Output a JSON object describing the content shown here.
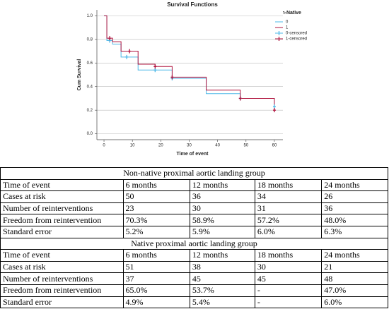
{
  "chart_data": {
    "type": "step",
    "title": "Survival Functions",
    "x_label": "Time of event",
    "y_label": "Cum Survival",
    "legend_title": "Non-Native",
    "legend": "top-right",
    "grid": true,
    "xlim": [
      -2.5,
      63
    ],
    "ylim": [
      -0.05,
      1.05
    ],
    "xticks": [
      0,
      10,
      20,
      30,
      40,
      50,
      60
    ],
    "yticks": [
      {
        "value": 0,
        "label": "0.0"
      },
      {
        "value": 0.2,
        "label": "0.2"
      },
      {
        "value": 0.4,
        "label": "0.4"
      },
      {
        "value": 0.6,
        "label": "0.6"
      },
      {
        "value": 0.8,
        "label": "0.8"
      },
      {
        "value": 1,
        "label": "1.0"
      }
    ],
    "series": [
      {
        "name": "0",
        "color": "#4db8e8",
        "kind": "step",
        "x": [
          0,
          1,
          3,
          6,
          12,
          24,
          36,
          48,
          60
        ],
        "values": [
          1.0,
          0.79,
          0.76,
          0.65,
          0.54,
          0.47,
          0.34,
          0.3,
          0.23
        ]
      },
      {
        "name": "1",
        "color": "#b0133e",
        "kind": "step",
        "x": [
          0,
          1,
          3,
          6,
          12,
          18,
          24,
          36,
          48,
          60
        ],
        "values": [
          1.0,
          0.81,
          0.78,
          0.7,
          0.59,
          0.57,
          0.48,
          0.37,
          0.3,
          0.2
        ]
      },
      {
        "name": "0-censored",
        "color": "#4db8e8",
        "kind": "censor",
        "x": [
          2,
          8,
          18,
          24,
          48,
          60
        ],
        "values": [
          0.79,
          0.65,
          0.54,
          0.47,
          0.3,
          0.23
        ]
      },
      {
        "name": "1-censored",
        "color": "#b0133e",
        "kind": "censor",
        "x": [
          2,
          9,
          18,
          24,
          48,
          60
        ],
        "values": [
          0.81,
          0.7,
          0.57,
          0.48,
          0.3,
          0.2
        ]
      }
    ]
  },
  "table": {
    "groups": [
      {
        "title": "Non-native proximal aortic landing group",
        "rows": [
          [
            "Time of event",
            "6 months",
            "12 months",
            "18 months",
            "24 months"
          ],
          [
            "Cases at risk",
            "50",
            "36",
            "34",
            "26"
          ],
          [
            "Number of reinterventions",
            "23",
            "30",
            "31",
            "36"
          ],
          [
            "Freedom from reintervention",
            "70.3%",
            "58.9%",
            "57.2%",
            "48.0%"
          ],
          [
            "Standard error",
            "5.2%",
            "5.9%",
            "6.0%",
            "6.3%"
          ]
        ]
      },
      {
        "title": "Native proximal aortic landing group",
        "rows": [
          [
            "Time of event",
            "6 months",
            "12 months",
            "18 months",
            "24 months"
          ],
          [
            "Cases at risk",
            "51",
            "38",
            "30",
            "21"
          ],
          [
            "Number of reinterventions",
            "37",
            "45",
            "45",
            "48"
          ],
          [
            "Freedom from reintervention",
            "65.0%",
            "53.7%",
            "-",
            "47.0%"
          ],
          [
            "Standard error",
            "4.9%",
            "5.4%",
            "-",
            "6.0%"
          ]
        ]
      }
    ]
  }
}
